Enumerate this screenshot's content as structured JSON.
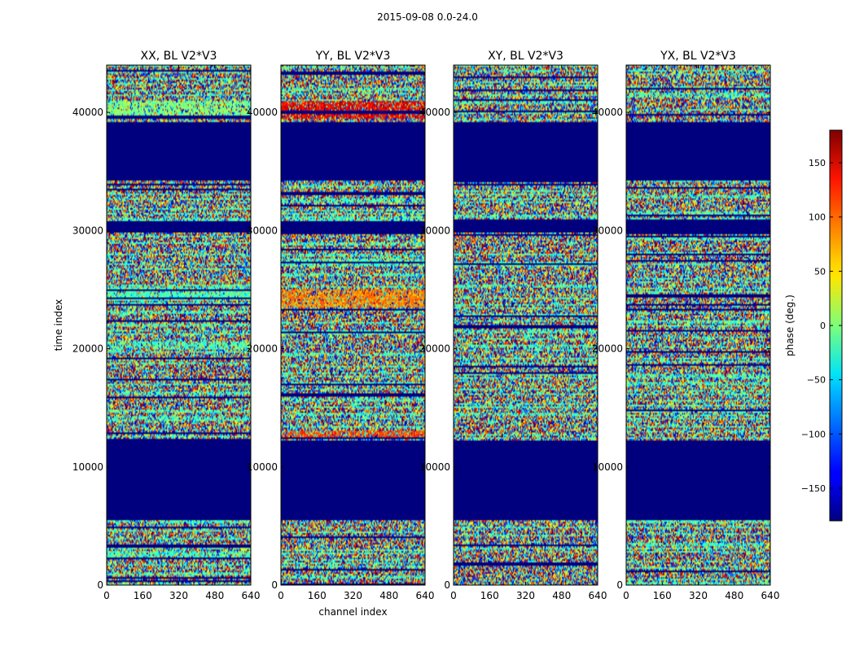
{
  "figure": {
    "suptitle": "2015-09-08 0.0-24.0"
  },
  "chart_data": [
    {
      "type": "heatmap",
      "title": "XX, BL V2*V3",
      "xlabel": "",
      "ylabel": "time index",
      "xlim": [
        0,
        640
      ],
      "ylim": [
        0,
        44000
      ],
      "x_ticks": [
        0,
        160,
        320,
        480,
        640
      ],
      "y_ticks": [
        0,
        10000,
        20000,
        30000,
        40000
      ],
      "colormap": "jet",
      "masked_time_ranges": [
        [
          5500,
          12200
        ],
        [
          34200,
          39200
        ],
        [
          29900,
          30800
        ]
      ],
      "bright_bands": [
        {
          "range": [
            39500,
            41000
          ],
          "phase": 0
        },
        {
          "range": [
            24000,
            25000
          ],
          "phase": -20
        }
      ]
    },
    {
      "type": "heatmap",
      "title": "YY, BL V2*V3",
      "xlabel": "channel index",
      "ylabel": "",
      "xlim": [
        0,
        640
      ],
      "ylim": [
        0,
        44000
      ],
      "x_ticks": [
        0,
        160,
        320,
        480,
        640
      ],
      "y_ticks": [
        0,
        10000,
        20000,
        30000,
        40000
      ],
      "colormap": "jet",
      "masked_time_ranges": [
        [
          5500,
          12200
        ],
        [
          34200,
          39200
        ],
        [
          29900,
          30800
        ]
      ],
      "bright_bands": [
        {
          "range": [
            39500,
            41000
          ],
          "phase": 140
        },
        {
          "range": [
            23500,
            25000
          ],
          "phase": 90
        },
        {
          "range": [
            12500,
            13000
          ],
          "phase": 110
        }
      ]
    },
    {
      "type": "heatmap",
      "title": "XY, BL V2*V3",
      "xlabel": "",
      "ylabel": "",
      "xlim": [
        0,
        640
      ],
      "ylim": [
        0,
        44000
      ],
      "x_ticks": [
        0,
        160,
        320,
        480,
        640
      ],
      "y_ticks": [
        0,
        10000,
        20000,
        30000,
        40000
      ],
      "colormap": "jet",
      "masked_time_ranges": [
        [
          5500,
          12200
        ],
        [
          34200,
          39200
        ],
        [
          29900,
          31000
        ]
      ],
      "bright_bands": []
    },
    {
      "type": "heatmap",
      "title": "YX, BL V2*V3",
      "xlabel": "",
      "ylabel": "",
      "xlim": [
        0,
        640
      ],
      "ylim": [
        0,
        44000
      ],
      "x_ticks": [
        0,
        160,
        320,
        480,
        640
      ],
      "y_ticks": [
        0,
        10000,
        20000,
        30000,
        40000
      ],
      "colormap": "jet",
      "masked_time_ranges": [
        [
          5500,
          12200
        ],
        [
          34200,
          39200
        ],
        [
          29900,
          31000
        ]
      ],
      "bright_bands": []
    }
  ],
  "colorbar": {
    "label": "phase (deg.)",
    "range": [
      -180,
      180
    ],
    "ticks": [
      -150,
      -100,
      -50,
      0,
      50,
      100,
      150
    ],
    "tick_labels": [
      "−150",
      "−100",
      "−50",
      "0",
      "50",
      "100",
      "150"
    ]
  }
}
